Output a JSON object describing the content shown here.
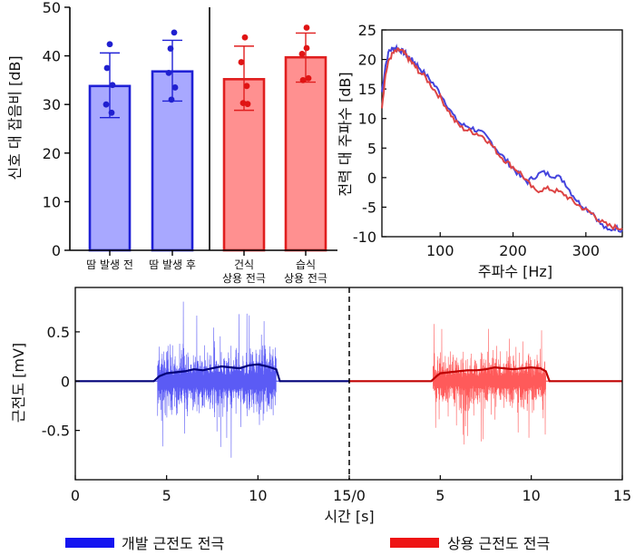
{
  "chart_data": [
    {
      "type": "bar",
      "ylabel": "신호 대 잡음비 [dB]",
      "ylim": [
        0,
        50
      ],
      "yticks": [
        0,
        10,
        20,
        30,
        40,
        50
      ],
      "categories": [
        {
          "lines": [
            "땀 발생 전"
          ]
        },
        {
          "lines": [
            "땀 발생 후"
          ]
        },
        {
          "lines": [
            "건식",
            "상용 전극"
          ]
        },
        {
          "lines": [
            "습식",
            "상용 전극"
          ]
        }
      ],
      "values": [
        33.8,
        36.8,
        35.2,
        39.7
      ],
      "error_low": [
        27.3,
        30.7,
        28.8,
        34.6
      ],
      "error_high": [
        40.6,
        43.2,
        42.0,
        44.7
      ],
      "points": [
        [
          42.4,
          37.5,
          34.0,
          30.0,
          28.3
        ],
        [
          44.8,
          41.5,
          36.5,
          33.5,
          31.0
        ],
        [
          43.8,
          38.7,
          33.8,
          30.3,
          30.1
        ],
        [
          45.8,
          41.6,
          40.4,
          35.4,
          35.0
        ]
      ],
      "bar_fill": [
        "#a8a8ff",
        "#a8a8ff",
        "#ff9090",
        "#ff9090"
      ],
      "bar_stroke": [
        "#1f20d6",
        "#1f20d6",
        "#e01e1e",
        "#e01e1e"
      ],
      "point_color": [
        "#2020d0",
        "#2020d0",
        "#e01414",
        "#e01414"
      ],
      "separator_after": 2
    },
    {
      "type": "line",
      "xlabel": "주파수 [Hz]",
      "ylabel": "전력 대 주파수 [dB]",
      "xlim": [
        20,
        350
      ],
      "ylim": [
        -10,
        25
      ],
      "xticks": [
        100,
        200,
        300
      ],
      "yticks": [
        -10,
        -5,
        0,
        5,
        10,
        15,
        20,
        25
      ],
      "series": [
        {
          "color": "#4444dd",
          "x": [
            20,
            25,
            30,
            35,
            40,
            45,
            50,
            55,
            60,
            65,
            70,
            80,
            90,
            100,
            110,
            120,
            130,
            140,
            150,
            160,
            170,
            180,
            190,
            200,
            210,
            220,
            230,
            240,
            250,
            260,
            270,
            280,
            290,
            300,
            310,
            320,
            330,
            340,
            350
          ],
          "y": [
            14.5,
            19.0,
            21.5,
            21.8,
            22.0,
            21.6,
            21.2,
            20.6,
            20.0,
            19.5,
            18.8,
            17.4,
            16.0,
            14.3,
            12.2,
            10.1,
            8.9,
            8.6,
            8.0,
            7.3,
            6.0,
            4.4,
            3.0,
            1.6,
            0.2,
            -0.7,
            0.2,
            0.9,
            0.5,
            0.3,
            -0.6,
            -2.6,
            -4.2,
            -5.2,
            -6.0,
            -7.8,
            -9.0,
            -8.5,
            -8.9
          ]
        },
        {
          "color": "#dd4444",
          "x": [
            20,
            25,
            30,
            35,
            40,
            45,
            50,
            55,
            60,
            65,
            70,
            80,
            90,
            100,
            110,
            120,
            130,
            140,
            150,
            160,
            170,
            180,
            190,
            200,
            210,
            220,
            230,
            240,
            250,
            260,
            270,
            280,
            290,
            300,
            310,
            320,
            330,
            340,
            350
          ],
          "y": [
            12.0,
            17.5,
            20.0,
            21.0,
            21.4,
            21.6,
            21.1,
            20.4,
            19.6,
            18.9,
            18.1,
            16.9,
            15.2,
            13.6,
            11.6,
            9.6,
            8.4,
            7.9,
            7.5,
            6.9,
            5.6,
            4.0,
            2.8,
            1.8,
            0.8,
            -0.8,
            -2.2,
            -2.0,
            -1.9,
            -2.3,
            -2.8,
            -3.8,
            -4.7,
            -5.5,
            -6.2,
            -7.4,
            -8.1,
            -8.4,
            -8.6
          ]
        }
      ]
    },
    {
      "type": "line",
      "ylabel": "근전도 [mV]",
      "xlabel": "시간 [s]",
      "ylim": [
        -1.0,
        0.95
      ],
      "yticks": [
        -0.5,
        0,
        0.5
      ],
      "ytick_labels": [
        "-0.5",
        "0",
        "0.5"
      ],
      "xtick_labels": [
        "0",
        "5",
        "10",
        "15/0",
        "5",
        "10",
        "15"
      ],
      "panels": [
        {
          "xlim": [
            0,
            15
          ],
          "raw_color": "#5b5bf5",
          "envelope_color": "#00007a",
          "activity": [
            4.5,
            11.0
          ],
          "peak_amplitude": 0.85,
          "envelope_x": [
            0,
            4.3,
            4.6,
            5,
            5.5,
            6,
            6.5,
            7,
            7.5,
            8,
            8.5,
            9,
            9.5,
            10,
            10.5,
            11,
            11.2,
            15
          ],
          "envelope_y": [
            0,
            0,
            0.05,
            0.08,
            0.09,
            0.1,
            0.12,
            0.11,
            0.13,
            0.15,
            0.14,
            0.13,
            0.16,
            0.17,
            0.15,
            0.12,
            0,
            0
          ]
        },
        {
          "xlim": [
            0,
            15
          ],
          "raw_color": "#ff5a5a",
          "envelope_color": "#c00000",
          "activity": [
            4.6,
            10.8
          ],
          "peak_amplitude": 0.7,
          "envelope_x": [
            0,
            4.5,
            4.8,
            5,
            5.5,
            6,
            6.5,
            7,
            7.5,
            8,
            8.5,
            9,
            9.5,
            10,
            10.5,
            10.8,
            11.0,
            15
          ],
          "envelope_y": [
            0,
            0,
            0.05,
            0.08,
            0.09,
            0.1,
            0.11,
            0.11,
            0.12,
            0.14,
            0.13,
            0.12,
            0.13,
            0.14,
            0.13,
            0.1,
            0,
            0
          ]
        }
      ]
    }
  ],
  "legend": {
    "items": [
      {
        "label": "개발 근전도 전극",
        "color": "#1414f0"
      },
      {
        "label": "상용 근전도 전극",
        "color": "#ee1414"
      }
    ]
  }
}
